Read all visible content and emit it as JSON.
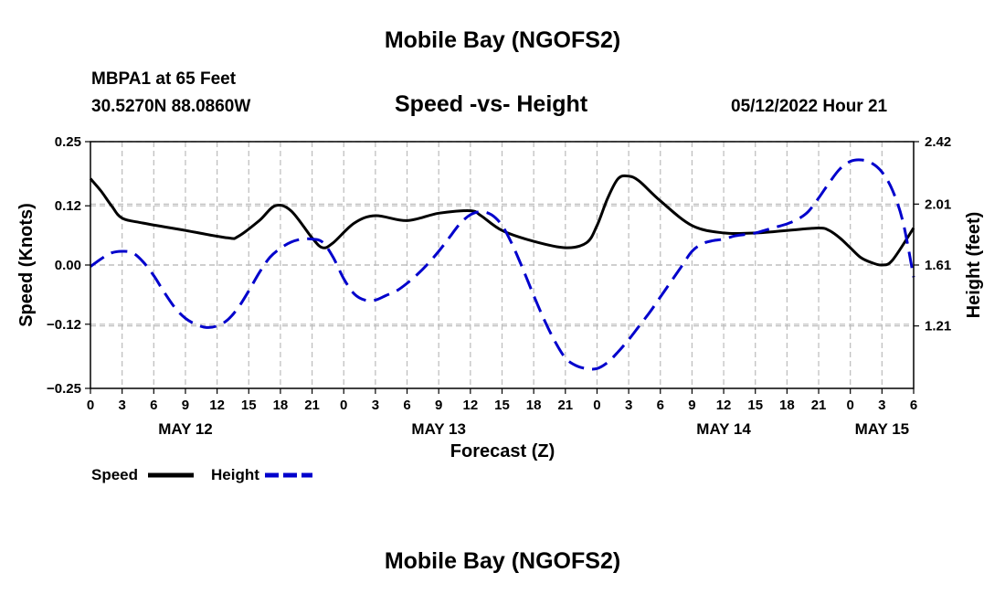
{
  "page": {
    "title_top": "Mobile Bay (NGOFS2)",
    "title_bottom": "Mobile Bay (NGOFS2)",
    "station_line": "MBPA1 at 65 Feet",
    "coords_line": "30.5270N  88.0860W",
    "datetime_line": "05/12/2022 Hour 21"
  },
  "chart_data": {
    "type": "line",
    "title": "Speed -vs- Height",
    "xlabel": "Forecast (Z)",
    "ylabel_left": "Speed (Knots)",
    "ylabel_right": "Height (feet)",
    "x_range_hours": [
      0,
      78
    ],
    "x_tick_step_hours": 3,
    "x_tick_labels": [
      "0",
      "3",
      "6",
      "9",
      "12",
      "15",
      "18",
      "21",
      "0",
      "3",
      "6",
      "9",
      "12",
      "15",
      "18",
      "21",
      "0",
      "3",
      "6",
      "9",
      "12",
      "15",
      "18",
      "21",
      "0",
      "3",
      "6"
    ],
    "date_labels": [
      {
        "label": "MAY 12",
        "hour": 9
      },
      {
        "label": "MAY 13",
        "hour": 33
      },
      {
        "label": "MAY 14",
        "hour": 60
      },
      {
        "label": "MAY 15",
        "hour": 75
      }
    ],
    "y_left": {
      "range": [
        -0.25,
        0.25
      ],
      "ticks": [
        -0.25,
        -0.12,
        0.0,
        0.12,
        0.25
      ],
      "tick_labels": [
        "−0.25",
        "−0.12",
        "0.00",
        "0.12",
        "0.25"
      ]
    },
    "y_right": {
      "range": [
        0.8,
        2.42
      ],
      "ticks": [
        1.21,
        1.61,
        2.01,
        2.42
      ],
      "tick_labels": [
        "1.21",
        "1.61",
        "2.01",
        "2.42"
      ]
    },
    "grid": true,
    "legend_position": "bottom-left",
    "series": [
      {
        "name": "Speed",
        "axis": "left",
        "color": "#000000",
        "dash": "solid",
        "x": [
          0,
          1,
          2,
          3,
          5,
          9,
          13,
          14,
          16,
          17.5,
          19,
          21,
          22,
          23,
          25,
          27,
          30,
          33,
          36,
          37,
          39,
          42,
          45,
          47,
          48,
          49,
          50,
          51,
          52,
          54,
          57,
          60,
          63,
          66,
          69,
          70,
          71,
          72,
          73,
          74,
          75,
          76,
          78
        ],
        "y": [
          0.175,
          0.15,
          0.12,
          0.095,
          0.085,
          0.07,
          0.055,
          0.058,
          0.09,
          0.12,
          0.11,
          0.055,
          0.035,
          0.045,
          0.085,
          0.1,
          0.09,
          0.105,
          0.11,
          0.1,
          0.07,
          0.048,
          0.035,
          0.045,
          0.08,
          0.135,
          0.175,
          0.18,
          0.17,
          0.13,
          0.08,
          0.065,
          0.065,
          0.07,
          0.075,
          0.07,
          0.055,
          0.035,
          0.015,
          0.005,
          0.0,
          0.01,
          0.075
        ]
      },
      {
        "name": "Height",
        "axis": "right",
        "color": "#0000cc",
        "dash": "dashed",
        "x": [
          0,
          1,
          2,
          3,
          4,
          5,
          6,
          7,
          8,
          9,
          10,
          11,
          12,
          13,
          14,
          15,
          16,
          17,
          18,
          19,
          20,
          21,
          22,
          23,
          24,
          25,
          26,
          27,
          28,
          29,
          30,
          31,
          32,
          33,
          34,
          35,
          36,
          37,
          38,
          39,
          40,
          41,
          42,
          43,
          44,
          45,
          46,
          47,
          48,
          49,
          50,
          51,
          52,
          53,
          54,
          55,
          56,
          57,
          58,
          59,
          60,
          61,
          62,
          63,
          64,
          65,
          66,
          67,
          68,
          69,
          70,
          71,
          72,
          73,
          74,
          75,
          76,
          77,
          78
        ],
        "y": [
          1.6,
          1.65,
          1.69,
          1.7,
          1.69,
          1.63,
          1.54,
          1.43,
          1.33,
          1.26,
          1.22,
          1.2,
          1.21,
          1.25,
          1.33,
          1.44,
          1.56,
          1.66,
          1.72,
          1.76,
          1.78,
          1.78,
          1.76,
          1.66,
          1.52,
          1.42,
          1.38,
          1.38,
          1.41,
          1.44,
          1.49,
          1.55,
          1.62,
          1.7,
          1.79,
          1.88,
          1.94,
          1.96,
          1.94,
          1.87,
          1.74,
          1.58,
          1.41,
          1.25,
          1.11,
          1.0,
          0.95,
          0.93,
          0.93,
          0.97,
          1.04,
          1.12,
          1.21,
          1.3,
          1.4,
          1.5,
          1.6,
          1.7,
          1.75,
          1.77,
          1.78,
          1.8,
          1.81,
          1.82,
          1.84,
          1.86,
          1.88,
          1.91,
          1.96,
          2.05,
          2.15,
          2.24,
          2.29,
          2.3,
          2.28,
          2.22,
          2.1,
          1.89,
          1.53
        ]
      }
    ]
  }
}
